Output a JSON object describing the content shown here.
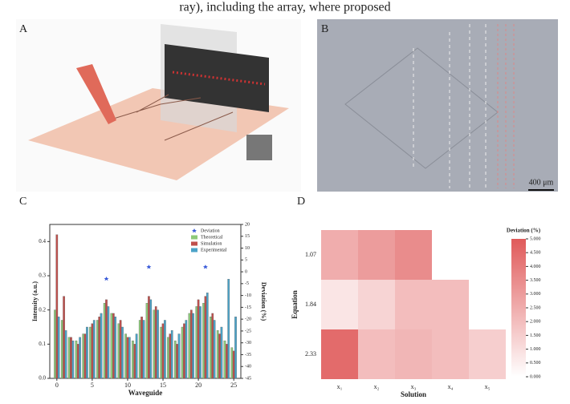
{
  "caption": "ray), including the array, where proposed",
  "panel_labels": [
    "A",
    "B",
    "C",
    "D"
  ],
  "scale_bar": "400 μm",
  "chart_data": [
    {
      "type": "bar",
      "x_label": "Waveguide",
      "y_label": "Intensity (a.u.)",
      "y2_label": "Deviation (%)",
      "x": [
        0,
        1,
        2,
        3,
        4,
        5,
        6,
        7,
        8,
        9,
        10,
        11,
        12,
        13,
        14,
        15,
        16,
        17,
        18,
        19,
        20,
        21,
        22,
        23,
        24,
        25
      ],
      "xlim": [
        -1,
        26
      ],
      "xticks": [
        0,
        5,
        10,
        15,
        20,
        25
      ],
      "ylim": [
        0,
        0.45
      ],
      "yticks": [
        {
          "value": 0,
          "label": "0.0"
        },
        {
          "value": 0.1,
          "label": "0.1"
        },
        {
          "value": 0.2,
          "label": "0.2"
        },
        {
          "value": 0.3,
          "label": "0.3"
        },
        {
          "value": 0.4,
          "label": "0.4"
        }
      ],
      "y2lim": [
        -45,
        20
      ],
      "y2ticks": [
        20,
        15,
        10,
        5,
        0,
        -5,
        -10,
        -15,
        -20,
        -25,
        -30,
        -35,
        -40,
        -45
      ],
      "series": [
        {
          "name": "Deviation",
          "color": "#3a5bd9",
          "axis": "y2",
          "type": "scatter",
          "values": [
            null,
            null,
            null,
            null,
            null,
            null,
            null,
            -3,
            null,
            null,
            null,
            null,
            null,
            2,
            null,
            null,
            null,
            null,
            null,
            null,
            null,
            2,
            null,
            null,
            null,
            null
          ]
        },
        {
          "name": "Theoretical",
          "color": "#8ec97a",
          "values": [
            0.2,
            0.17,
            0.12,
            0.11,
            0.13,
            0.15,
            0.17,
            0.22,
            0.19,
            0.16,
            0.13,
            0.11,
            0.17,
            0.22,
            0.2,
            0.15,
            0.12,
            0.11,
            0.15,
            0.19,
            0.21,
            0.22,
            0.18,
            0.14,
            0.11,
            0.09
          ]
        },
        {
          "name": "Simulation",
          "color": "#c0504d",
          "values": [
            0.42,
            0.24,
            0.12,
            0.1,
            0.13,
            0.16,
            0.18,
            0.23,
            0.19,
            0.17,
            0.12,
            0.1,
            0.18,
            0.24,
            0.21,
            0.16,
            0.13,
            0.1,
            0.16,
            0.2,
            0.23,
            0.24,
            0.19,
            0.13,
            0.1,
            0.08
          ]
        },
        {
          "name": "Experimental",
          "color": "#4ba3c8",
          "values": [
            0.18,
            0.14,
            0.11,
            0.12,
            0.15,
            0.17,
            0.19,
            0.21,
            0.18,
            0.15,
            0.12,
            0.13,
            0.17,
            0.23,
            0.2,
            0.17,
            0.14,
            0.13,
            0.17,
            0.19,
            0.21,
            0.25,
            0.17,
            0.15,
            0.29,
            0.18
          ]
        }
      ]
    },
    {
      "type": "heatmap",
      "x_label": "Solution",
      "y_label": "Equation",
      "colorbar_label": "Deviation (%)",
      "x_categories": [
        "x₁",
        "x₂",
        "x₃",
        "x₄",
        "x₅"
      ],
      "y_categories": [
        "1.07",
        "1.84",
        "2.33"
      ],
      "values": [
        [
          2.5,
          3.0,
          3.5,
          null,
          null
        ],
        [
          0.8,
          1.3,
          2.0,
          2.0,
          null
        ],
        [
          4.5,
          2.0,
          2.2,
          2.0,
          1.5
        ]
      ],
      "clim": [
        0,
        5
      ],
      "cticks": [
        {
          "value": 0,
          "label": "0.000"
        },
        {
          "value": 0.5,
          "label": "0.500"
        },
        {
          "value": 1,
          "label": "1.000"
        },
        {
          "value": 1.5,
          "label": "1.500"
        },
        {
          "value": 2,
          "label": "2.000"
        },
        {
          "value": 2.5,
          "label": "2.500"
        },
        {
          "value": 3,
          "label": "3.000"
        },
        {
          "value": 3.5,
          "label": "3.500"
        },
        {
          "value": 4,
          "label": "4.000"
        },
        {
          "value": 4.5,
          "label": "4.500"
        },
        {
          "value": 5,
          "label": "5.000"
        }
      ],
      "colors": [
        "#ffffff",
        "#e05a5a"
      ]
    }
  ]
}
